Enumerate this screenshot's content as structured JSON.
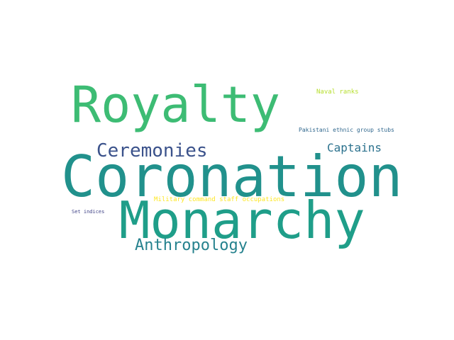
{
  "words": [
    {
      "text": "Royalty",
      "color": "#3dbc74"
    },
    {
      "text": "Coronation",
      "color": "#21918c"
    },
    {
      "text": "Monarchy",
      "color": "#1f9e89"
    },
    {
      "text": "Ceremonies",
      "color": "#3b528b"
    },
    {
      "text": "Captains",
      "color": "#2c728e"
    },
    {
      "text": "Anthropology",
      "color": "#26828e"
    },
    {
      "text": "Naval ranks",
      "color": "#b5de2b"
    },
    {
      "text": "Pakistani ethnic group stubs",
      "color": "#31688e"
    },
    {
      "text": "Military command staff occupations",
      "color": "#fde725"
    },
    {
      "text": "Set indices",
      "color": "#414487"
    }
  ]
}
